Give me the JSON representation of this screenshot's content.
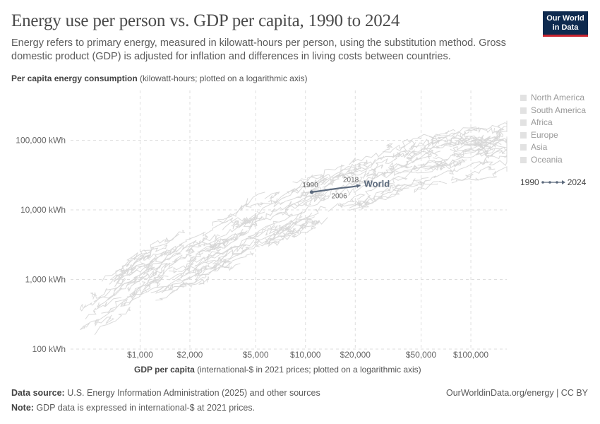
{
  "header": {
    "title": "Energy use per person vs. GDP per capita, 1990 to 2024",
    "subtitle": "Energy refers to primary energy, measured in kilowatt-hours per person, using the substitution method. Gross domestic product (GDP) is adjusted for inflation and differences in living costs between countries.",
    "logo_line1": "Our World",
    "logo_line2": "in Data"
  },
  "axes": {
    "y_title_bold": "Per capita energy consumption",
    "y_title_rest": " (kilowatt-hours; plotted on a logarithmic axis)",
    "x_title_bold": "GDP per capita",
    "x_title_rest": " (international-$ in 2021 prices; plotted on a logarithmic axis)"
  },
  "legend": {
    "items": [
      "North America",
      "South America",
      "Africa",
      "Europe",
      "Asia",
      "Oceania"
    ],
    "swatch_color": "#e2e2e2"
  },
  "timeline": {
    "start": "1990",
    "end": "2024"
  },
  "footer": {
    "source_label": "Data source:",
    "source_text": " U.S. Energy Information Administration (2025) and other sources",
    "note_label": "Note:",
    "note_text": " GDP data is expressed in international-$ at 2021 prices.",
    "link": "OurWorldinData.org/energy | CC BY"
  },
  "chart_data": {
    "type": "scatter",
    "title": "Energy use per person vs. GDP per capita, 1990 to 2024",
    "xlabel": "GDP per capita (international-$ in 2021 prices; plotted on a logarithmic axis)",
    "ylabel": "Per capita energy consumption (kilowatt-hours; plotted on a logarithmic axis)",
    "x_scale": "log",
    "y_scale": "log",
    "xlim": [
      380,
      165000
    ],
    "ylim": [
      100,
      520000
    ],
    "x_ticks": [
      1000,
      2000,
      5000,
      10000,
      20000,
      50000,
      100000
    ],
    "x_tick_labels": [
      "$1,000",
      "$2,000",
      "$5,000",
      "$10,000",
      "$20,000",
      "$50,000",
      "$100,000"
    ],
    "y_ticks": [
      100,
      1000,
      10000,
      100000
    ],
    "y_tick_labels": [
      "100 kWh",
      "1,000 kWh",
      "10,000 kWh",
      "100,000 kWh"
    ],
    "grid": true,
    "highlight_series": {
      "name": "World",
      "points": [
        {
          "year": 1990,
          "x": 10900,
          "y": 18000
        },
        {
          "year": 2006,
          "x": 16000,
          "y": 20500
        },
        {
          "year": 2018,
          "x": 19200,
          "y": 21500
        },
        {
          "year": 2024,
          "x": 21500,
          "y": 22500
        }
      ],
      "labeled_years": [
        "1990",
        "2006",
        "2018"
      ],
      "color": "#5c6a7d"
    },
    "background_series_color": "#d6d6d6",
    "background_trend": {
      "description": "country trajectories (faded)",
      "anchors": [
        [
          450,
          300
        ],
        [
          1000,
          900
        ],
        [
          2000,
          2200
        ],
        [
          5000,
          6000
        ],
        [
          10000,
          12000
        ],
        [
          20000,
          22000
        ],
        [
          50000,
          45000
        ],
        [
          100000,
          60000
        ],
        [
          150000,
          70000
        ]
      ]
    }
  }
}
